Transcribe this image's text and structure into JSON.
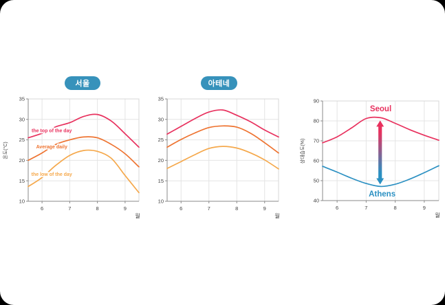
{
  "page": {
    "card_bg": "#ffffff",
    "outside_bg": "#000000",
    "badge_color": "#3792bb"
  },
  "chart_data": [
    {
      "id": "seoul-temp",
      "type": "line",
      "title_badge": "서울",
      "y_axis_label": "온도(°C)",
      "x_axis_unit": "월",
      "xlim": [
        5.5,
        9.5
      ],
      "ylim": [
        10,
        35
      ],
      "xticks": [
        6,
        7,
        8,
        9
      ],
      "yticks": [
        35,
        30,
        25,
        20,
        15,
        10
      ],
      "grid": true,
      "x": [
        5.5,
        6,
        6.5,
        7,
        7.5,
        8,
        8.5,
        9,
        9.5
      ],
      "series": [
        {
          "name": "the top of the day",
          "color": "#e8315e",
          "values": [
            25.5,
            26.6,
            28.2,
            29.2,
            30.7,
            31.2,
            29.6,
            26.5,
            23.2
          ],
          "label": "the top of the day",
          "label_x": 6.35,
          "label_y": 27.3
        },
        {
          "name": "Average daily",
          "color": "#ee7330",
          "values": [
            20.0,
            21.8,
            23.9,
            25.0,
            25.7,
            25.5,
            23.9,
            21.6,
            18.4
          ],
          "label": "Average daily",
          "label_x": 6.35,
          "label_y": 23.3
        },
        {
          "name": "the low of the day",
          "color": "#f5a84b",
          "values": [
            13.6,
            15.8,
            18.8,
            21.2,
            22.4,
            22.2,
            20.5,
            16.3,
            12.1
          ],
          "label": "the low of the day",
          "label_x": 6.35,
          "label_y": 16.6
        }
      ]
    },
    {
      "id": "athens-temp",
      "type": "line",
      "title_badge": "아테네",
      "y_axis_label": "",
      "x_axis_unit": "월",
      "xlim": [
        5.5,
        9.5
      ],
      "ylim": [
        10,
        35
      ],
      "xticks": [
        6,
        7,
        8,
        9
      ],
      "yticks": [
        35,
        30,
        25,
        20,
        15,
        10
      ],
      "grid": true,
      "x": [
        5.5,
        6,
        6.5,
        7,
        7.5,
        8,
        8.5,
        9,
        9.5
      ],
      "series": [
        {
          "name": "the top of the day",
          "color": "#e8315e",
          "values": [
            26.4,
            28.3,
            30.2,
            31.8,
            32.3,
            31.0,
            29.4,
            27.4,
            25.7
          ]
        },
        {
          "name": "Average daily",
          "color": "#ee7330",
          "values": [
            23.2,
            25.1,
            26.7,
            28.0,
            28.4,
            28.1,
            26.6,
            24.3,
            21.8
          ]
        },
        {
          "name": "the low of the day",
          "color": "#f5a84b",
          "values": [
            18.0,
            19.7,
            21.4,
            22.9,
            23.4,
            23.0,
            21.8,
            20.1,
            17.9
          ]
        }
      ]
    },
    {
      "id": "humidity",
      "type": "line",
      "title_badge": "",
      "y_axis_label": "상대습도(%)",
      "x_axis_unit": "월",
      "xlim": [
        5.5,
        9.5
      ],
      "ylim": [
        40,
        90
      ],
      "xticks": [
        6,
        7,
        8,
        9
      ],
      "yticks": [
        90,
        80,
        70,
        60,
        50,
        40
      ],
      "grid": true,
      "x": [
        5.5,
        6,
        6.5,
        7,
        7.5,
        8,
        8.5,
        9,
        9.5
      ],
      "series": [
        {
          "name": "Seoul",
          "color": "#e8315e",
          "values": [
            69.0,
            72.0,
            76.5,
            81.2,
            81.6,
            78.8,
            75.6,
            72.8,
            70.3
          ]
        },
        {
          "name": "Athens",
          "color": "#2b90c2",
          "values": [
            57.2,
            54.3,
            51.2,
            48.6,
            47.1,
            48.2,
            50.8,
            54.0,
            57.5
          ]
        }
      ],
      "annotations": [
        {
          "text": "Seoul",
          "x": 7.5,
          "y": 86.2,
          "color": "#e8315e"
        },
        {
          "text": "Athens",
          "x": 7.55,
          "y": 43.4,
          "color": "#2b90c2"
        }
      ],
      "arrow": {
        "x": 7.48,
        "y_top": 80.2,
        "y_bottom": 48.1,
        "color_top": "#e8315e",
        "color_bottom": "#2b90c2"
      }
    }
  ]
}
